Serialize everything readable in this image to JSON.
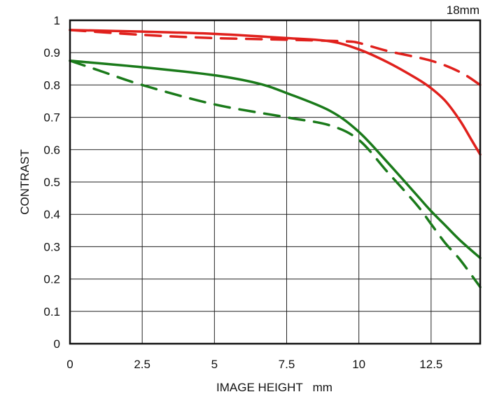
{
  "chart_data": {
    "type": "line",
    "title": "18mm",
    "xlabel": "IMAGE HEIGHT   mm",
    "ylabel": "CONTRAST",
    "xlim": [
      0,
      14.2
    ],
    "ylim": [
      0,
      1
    ],
    "grid": true,
    "x_ticks": [
      "0",
      "2.5",
      "5",
      "7.5",
      "10",
      "12.5"
    ],
    "x_tick_values": [
      0,
      2.5,
      5,
      7.5,
      10,
      12.5
    ],
    "y_ticks": [
      "0",
      "0.1",
      "0.2",
      "0.3",
      "0.4",
      "0.5",
      "0.6",
      "0.7",
      "0.8",
      "0.9",
      "1"
    ],
    "y_tick_values": [
      0,
      0.1,
      0.2,
      0.3,
      0.4,
      0.5,
      0.6,
      0.7,
      0.8,
      0.9,
      1
    ],
    "series": [
      {
        "color": "#e0201c",
        "dash": false,
        "x": [
          0,
          2.5,
          5,
          7.5,
          9,
          10,
          11,
          12,
          12.5,
          13,
          13.5,
          13.9,
          14.2
        ],
        "y": [
          0.97,
          0.965,
          0.958,
          0.945,
          0.935,
          0.91,
          0.87,
          0.82,
          0.79,
          0.75,
          0.69,
          0.63,
          0.585
        ]
      },
      {
        "color": "#e0201c",
        "dash": true,
        "x": [
          0,
          2.5,
          5,
          7.5,
          9.5,
          10,
          11,
          12.5,
          13.5,
          14.2
        ],
        "y": [
          0.97,
          0.955,
          0.945,
          0.94,
          0.935,
          0.93,
          0.905,
          0.875,
          0.84,
          0.8
        ]
      },
      {
        "color": "#1a7a1a",
        "dash": false,
        "x": [
          0,
          2.5,
          5,
          6.5,
          7.5,
          9,
          10,
          11,
          12,
          12.5,
          13,
          13.5,
          14.2
        ],
        "y": [
          0.875,
          0.855,
          0.83,
          0.805,
          0.775,
          0.72,
          0.655,
          0.56,
          0.46,
          0.41,
          0.365,
          0.32,
          0.265
        ]
      },
      {
        "color": "#1a7a1a",
        "dash": true,
        "x": [
          0,
          1,
          2.5,
          5,
          7.5,
          9,
          10,
          11,
          12,
          12.5,
          13,
          13.5,
          14.2
        ],
        "y": [
          0.875,
          0.845,
          0.8,
          0.74,
          0.7,
          0.675,
          0.63,
          0.53,
          0.43,
          0.37,
          0.31,
          0.26,
          0.175
        ]
      }
    ]
  }
}
